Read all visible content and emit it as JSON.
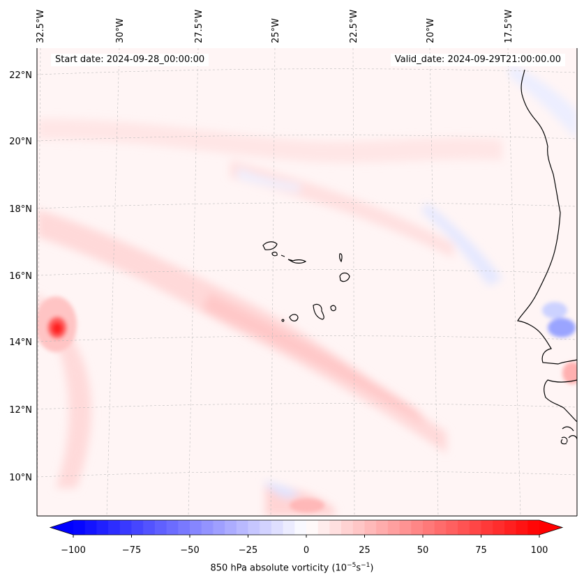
{
  "map": {
    "start_date_label": "Start date: 2024-09-28_00:00:00",
    "valid_date_label": "Valid_date: 2024-09-29T21:00:00.00",
    "lon_labels": [
      "32.5°W",
      "30°W",
      "27.5°W",
      "25°W",
      "22.5°W",
      "20°W",
      "17.5°W"
    ],
    "lat_labels": [
      "22°N",
      "20°N",
      "18°N",
      "16°N",
      "14°N",
      "12°N",
      "10°N"
    ],
    "field": "850 hPa absolute vorticity",
    "units": "10^-5 s^-1"
  },
  "colorbar": {
    "ticks": [
      "−100",
      "−75",
      "−50",
      "−25",
      "0",
      "25",
      "50",
      "75",
      "100"
    ],
    "min": -100,
    "max": 100,
    "levels": 40,
    "label_text": "850 hPa absolute vorticity (10",
    "label_exp1": "−5",
    "label_mid": "s",
    "label_exp2": "−1",
    "label_end": ")",
    "colormap": "bwr",
    "low_color": "#0000ff",
    "mid_color": "#ffffff",
    "high_color": "#ff0000"
  }
}
